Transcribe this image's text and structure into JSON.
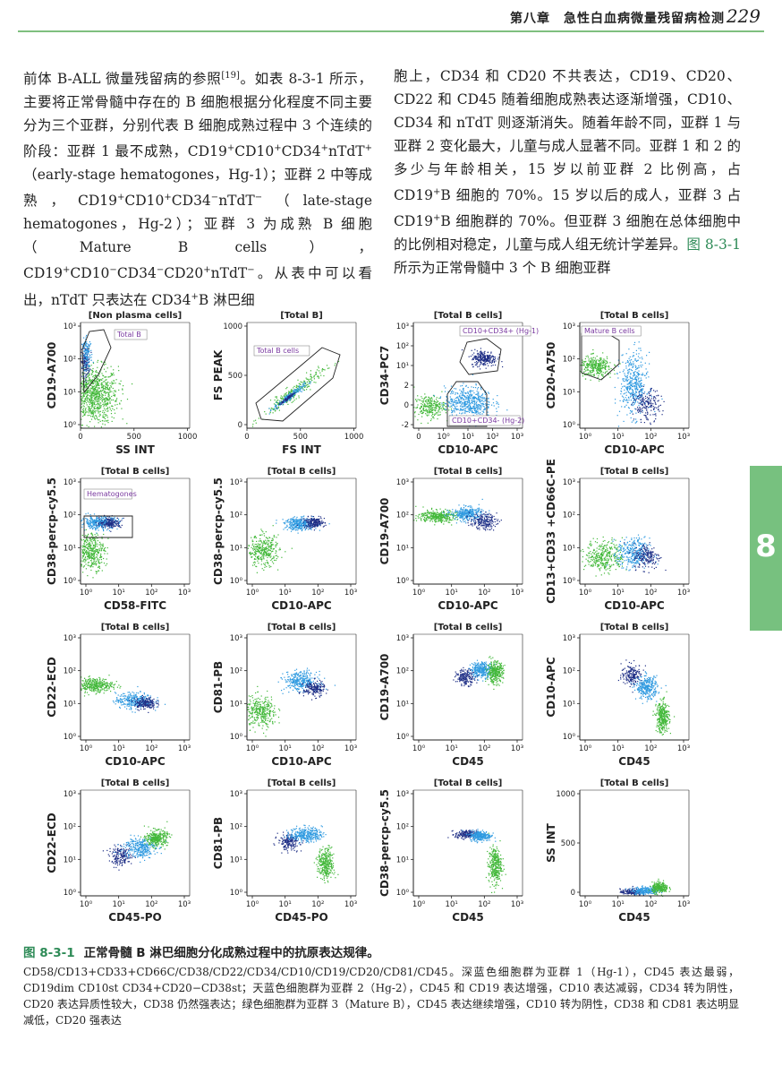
{
  "header": {
    "chapter": "第八章　急性白血病微量残留病检测",
    "page_number": "229"
  },
  "side_tab": "8",
  "text": {
    "left": [
      {
        "t": "前体 B-ALL 微量残留病的参照"
      },
      {
        "t": "[19]",
        "sup": true
      },
      {
        "t": "。如表 8-3-1 所示，主要将正常骨髓中存在的 B 细胞根据分化程度不同主要分为三个亚群，分别代表 B 细胞成熟过程中 3 个连续的阶段：亚群 1 最不成熟，CD19"
      },
      {
        "t": "+",
        "sup": true
      },
      {
        "t": "CD10"
      },
      {
        "t": "+",
        "sup": true
      },
      {
        "t": "CD34"
      },
      {
        "t": "+",
        "sup": true
      },
      {
        "t": "nTdT"
      },
      {
        "t": "+",
        "sup": true
      },
      {
        "t": "（early-stage hematogones，Hg-1）；亚群 2 中等成熟，CD19"
      },
      {
        "t": "+",
        "sup": true
      },
      {
        "t": "CD10"
      },
      {
        "t": "+",
        "sup": true
      },
      {
        "t": "CD34"
      },
      {
        "t": "−",
        "sup": true
      },
      {
        "t": "nTdT"
      },
      {
        "t": "−",
        "sup": true
      },
      {
        "t": "（late-stage hematogones，Hg-2）；亚群 3 为成熟 B 细胞（Mature B cells），CD19"
      },
      {
        "t": "+",
        "sup": true
      },
      {
        "t": "CD10"
      },
      {
        "t": "−",
        "sup": true
      },
      {
        "t": "CD34"
      },
      {
        "t": "−",
        "sup": true
      },
      {
        "t": "CD20"
      },
      {
        "t": "+",
        "sup": true
      },
      {
        "t": "nTdT"
      },
      {
        "t": "−",
        "sup": true
      },
      {
        "t": "。从表中可以看出，nTdT 只表达在 CD34"
      },
      {
        "t": "+",
        "sup": true
      },
      {
        "t": "B 淋巴细"
      }
    ],
    "right": [
      {
        "t": "胞上，CD34 和 CD20 不共表达，CD19、CD20、CD22 和 CD45 随着细胞成熟表达逐渐增强，CD10、CD34 和 nTdT 则逐渐消失。随着年龄不同，亚群 1 与亚群 2 变化最大，儿童与成人显著不同。亚群 1 和 2 的多少与年龄相关，15 岁以前亚群 2 比例高，占 CD19"
      },
      {
        "t": "+",
        "sup": true
      },
      {
        "t": "B 细胞的 70%。15 岁以后的成人，亚群 3 占 CD19"
      },
      {
        "t": "+",
        "sup": true
      },
      {
        "t": "B 细胞群的 70%。但亚群 3 细胞在总体细胞中的比例相对稳定，儿童与成人组无统计学差异。"
      },
      {
        "t": "图 8-3-1",
        "link": true
      },
      {
        "t": " 所示为正常骨髓中 3 个 B 细胞亚群"
      }
    ]
  },
  "figure": {
    "caption_number": "图 8-3-1",
    "caption_title": "正常骨髓 B 淋巴细胞分化成熟过程中的抗原表达规律。",
    "caption_body": "CD58/CD13+CD33+CD66C/CD38/CD22/CD34/CD10/CD19/CD20/CD81/CD45。深蓝色细胞群为亚群 1（Hg-1），CD45 表达最弱，CD19dim CD10st CD34+CD20−CD38st；天蓝色细胞群为亚群 2（Hg-2），CD45 和 CD19 表达增强，CD10 表达减弱，CD34 转为阴性，CD20 表达异质性较大，CD38 仍然强表达；绿色细胞群为亚群 3（Mature B），CD45 表达继续增强，CD10 转为阴性，CD38 和 CD81 表达明显减低，CD20 强表达",
    "colors": {
      "hg1": "#1f2f86",
      "hg2": "#2f9ae0",
      "mature": "#43b83a",
      "gate": "#222222",
      "gate_label": "#7a3aa0"
    },
    "chart_data": [
      {
        "type": "scatter",
        "title": "[Non plasma cells]",
        "xlabel": "SS INT",
        "ylabel": "CD19-A700",
        "x_scale": "linear",
        "y_scale": "log",
        "x_ticks": [
          "0",
          "500",
          "1000"
        ],
        "y_ticks": [
          "10⁰",
          "10¹",
          "10²",
          "10³"
        ],
        "gate": "Total B",
        "populations": [
          {
            "pop": "green",
            "cx": 120,
            "cy": 0.2,
            "sx": 110,
            "sy": 0.55,
            "n": 900
          },
          {
            "pop": "darkblue",
            "cx": 40,
            "cy": 1.5,
            "sx": 20,
            "sy": 0.3,
            "n": 140
          },
          {
            "pop": "skyblue",
            "cx": 55,
            "cy": 1.8,
            "sx": 22,
            "sy": 0.3,
            "n": 120
          }
        ]
      },
      {
        "type": "scatter",
        "title": "[Total B]",
        "xlabel": "FS INT",
        "ylabel": "FS PEAK",
        "x_scale": "linear",
        "y_scale": "linear",
        "x_ticks": [
          "0",
          "500",
          "1000"
        ],
        "y_ticks": [
          "0",
          "500",
          "1000"
        ],
        "gate": "Total B cells",
        "populations": [
          {
            "pop": "green",
            "cx": 420,
            "cy": 340,
            "sx": 140,
            "sy": 110,
            "n": 260,
            "corr": 0.95
          },
          {
            "pop": "skyblue",
            "cx": 380,
            "cy": 300,
            "sx": 70,
            "sy": 55,
            "n": 180,
            "corr": 0.95
          },
          {
            "pop": "darkblue",
            "cx": 370,
            "cy": 290,
            "sx": 30,
            "sy": 25,
            "n": 90,
            "corr": 0.95
          }
        ]
      },
      {
        "type": "scatter",
        "title": "[Total B  cells]",
        "xlabel": "CD10-APC",
        "ylabel": "CD34-PC7",
        "x_scale": "log",
        "y_scale": "log",
        "x_ticks": [
          "0",
          "10⁰",
          "10¹",
          "10²",
          "10³"
        ],
        "y_ticks": [
          "-2",
          "0",
          "2",
          "10¹",
          "10²",
          "10³"
        ],
        "gates": [
          "CD10+CD34+ (Hg-1)",
          "CD10+CD34- (Hg-2)"
        ],
        "populations": [
          {
            "pop": "darkblue",
            "cx": 1.5,
            "cy": 1.4,
            "sx": 0.25,
            "sy": 0.18,
            "n": 240
          },
          {
            "pop": "green",
            "cx": -0.6,
            "cy": -0.8,
            "sx": 0.3,
            "sy": 0.25,
            "n": 260
          },
          {
            "pop": "skyblue",
            "cx": 0.9,
            "cy": -0.6,
            "sx": 0.45,
            "sy": 0.35,
            "n": 520
          }
        ]
      },
      {
        "type": "scatter",
        "title": "[Total B  cells]",
        "xlabel": "CD10-APC",
        "ylabel": "CD20-A750",
        "x_scale": "log",
        "y_scale": "log",
        "x_ticks": [
          "10⁰",
          "10¹",
          "10²",
          "10³"
        ],
        "y_ticks": [
          "10⁰",
          "10¹",
          "10²",
          "10³"
        ],
        "gate": "Mature B cells",
        "populations": [
          {
            "pop": "green",
            "cx": -0.5,
            "cy": 1.3,
            "sx": 0.3,
            "sy": 0.2,
            "n": 320
          },
          {
            "pop": "skyblue",
            "cx": 0.9,
            "cy": 0.6,
            "sx": 0.25,
            "sy": 0.6,
            "n": 420
          },
          {
            "pop": "darkblue",
            "cx": 1.4,
            "cy": -0.2,
            "sx": 0.25,
            "sy": 0.3,
            "n": 180
          }
        ]
      },
      {
        "type": "scatter",
        "title": "[Total B  cells]",
        "xlabel": "CD58-FITC",
        "ylabel": "CD38-percp-cy5.5",
        "x_scale": "log",
        "y_scale": "log",
        "x_ticks": [
          "10⁰",
          "10¹",
          "10²",
          "10³"
        ],
        "y_ticks": [
          "10⁰",
          "10¹",
          "10²",
          "10³"
        ],
        "gate": "Hematogones",
        "populations": [
          {
            "pop": "green",
            "cx": -0.7,
            "cy": 0.2,
            "sx": 0.25,
            "sy": 0.35,
            "n": 380
          },
          {
            "pop": "skyblue",
            "cx": -0.4,
            "cy": 1.3,
            "sx": 0.35,
            "sy": 0.12,
            "n": 360
          },
          {
            "pop": "darkblue",
            "cx": 0.0,
            "cy": 1.3,
            "sx": 0.2,
            "sy": 0.1,
            "n": 160
          }
        ]
      },
      {
        "type": "scatter",
        "title": "[Total B  cells]",
        "xlabel": "CD10-APC",
        "ylabel": "CD38-percp-cy5.5",
        "x_scale": "log",
        "y_scale": "log",
        "x_ticks": [
          "10⁰",
          "10¹",
          "10²",
          "10³"
        ],
        "y_ticks": [
          "10⁰",
          "10¹",
          "10²",
          "10³"
        ],
        "populations": [
          {
            "pop": "green",
            "cx": -0.5,
            "cy": 0.2,
            "sx": 0.3,
            "sy": 0.3,
            "n": 340
          },
          {
            "pop": "skyblue",
            "cx": 0.9,
            "cy": 1.25,
            "sx": 0.3,
            "sy": 0.12,
            "n": 320
          },
          {
            "pop": "darkblue",
            "cx": 1.4,
            "cy": 1.3,
            "sx": 0.2,
            "sy": 0.1,
            "n": 180
          }
        ]
      },
      {
        "type": "scatter",
        "title": "[Total B  cells]",
        "xlabel": "CD10-APC",
        "ylabel": "CD19-A700",
        "x_scale": "log",
        "y_scale": "log",
        "x_ticks": [
          "10⁰",
          "10¹",
          "10²",
          "10³"
        ],
        "y_ticks": [
          "10⁰",
          "10¹",
          "10²",
          "10³"
        ],
        "populations": [
          {
            "pop": "green",
            "cx": -0.2,
            "cy": 1.55,
            "sx": 0.35,
            "sy": 0.12,
            "n": 340
          },
          {
            "pop": "skyblue",
            "cx": 0.9,
            "cy": 1.65,
            "sx": 0.3,
            "sy": 0.13,
            "n": 320
          },
          {
            "pop": "darkblue",
            "cx": 1.5,
            "cy": 1.35,
            "sx": 0.25,
            "sy": 0.15,
            "n": 200
          }
        ]
      },
      {
        "type": "scatter",
        "title": "[Total B  cells]",
        "xlabel": "CD10-APC",
        "ylabel": "CD13+CD33 +CD66C-PE",
        "x_scale": "log",
        "y_scale": "log",
        "x_ticks": [
          "10⁰",
          "10¹",
          "10²",
          "10³"
        ],
        "y_ticks": [
          "10⁰",
          "10¹",
          "10²",
          "10³"
        ],
        "populations": [
          {
            "pop": "green",
            "cx": -0.2,
            "cy": 0.0,
            "sx": 0.35,
            "sy": 0.3,
            "n": 340
          },
          {
            "pop": "skyblue",
            "cx": 0.9,
            "cy": 0.1,
            "sx": 0.3,
            "sy": 0.3,
            "n": 320
          },
          {
            "pop": "darkblue",
            "cx": 1.4,
            "cy": 0.0,
            "sx": 0.25,
            "sy": 0.25,
            "n": 180
          }
        ]
      },
      {
        "type": "scatter",
        "title": "[Total B cells]",
        "xlabel": "CD10-APC",
        "ylabel": "CD22-ECD",
        "x_scale": "log",
        "y_scale": "log",
        "x_ticks": [
          "10⁰",
          "10¹",
          "10²",
          "10³"
        ],
        "y_ticks": [
          "10⁰",
          "10¹",
          "10²",
          "10³"
        ],
        "populations": [
          {
            "pop": "green",
            "cx": -0.6,
            "cy": 1.05,
            "sx": 0.35,
            "sy": 0.14,
            "n": 340
          },
          {
            "pop": "skyblue",
            "cx": 0.9,
            "cy": 0.45,
            "sx": 0.35,
            "sy": 0.15,
            "n": 320
          },
          {
            "pop": "darkblue",
            "cx": 1.3,
            "cy": 0.35,
            "sx": 0.2,
            "sy": 0.12,
            "n": 180
          }
        ]
      },
      {
        "type": "scatter",
        "title": "[Total B cells]",
        "xlabel": "CD10-APC",
        "ylabel": "CD81-PB",
        "x_scale": "log",
        "y_scale": "log",
        "x_ticks": [
          "10⁰",
          "10¹",
          "10²",
          "10³"
        ],
        "y_ticks": [
          "10⁰",
          "10¹",
          "10²",
          "10³"
        ],
        "populations": [
          {
            "pop": "green",
            "cx": -0.6,
            "cy": 0.0,
            "sx": 0.3,
            "sy": 0.3,
            "n": 340
          },
          {
            "pop": "skyblue",
            "cx": 0.9,
            "cy": 1.2,
            "sx": 0.3,
            "sy": 0.18,
            "n": 320
          },
          {
            "pop": "darkblue",
            "cx": 1.4,
            "cy": 0.9,
            "sx": 0.2,
            "sy": 0.15,
            "n": 180
          }
        ]
      },
      {
        "type": "scatter",
        "title": "[Total B cells]",
        "xlabel": "CD45",
        "ylabel": "CD19-A700",
        "x_scale": "log",
        "y_scale": "log",
        "x_ticks": [
          "10⁰",
          "10¹",
          "10²",
          "10³"
        ],
        "y_ticks": [
          "10⁰",
          "10¹",
          "10²",
          "10³"
        ],
        "populations": [
          {
            "pop": "darkblue",
            "cx": 0.85,
            "cy": 1.35,
            "sx": 0.18,
            "sy": 0.15,
            "n": 180
          },
          {
            "pop": "skyblue",
            "cx": 1.45,
            "cy": 1.65,
            "sx": 0.2,
            "sy": 0.15,
            "n": 300
          },
          {
            "pop": "green",
            "cx": 1.95,
            "cy": 1.55,
            "sx": 0.15,
            "sy": 0.2,
            "n": 320
          }
        ]
      },
      {
        "type": "scatter",
        "title": "[Total B cells]",
        "xlabel": "CD45",
        "ylabel": "CD10-APC",
        "x_scale": "log",
        "y_scale": "log",
        "x_ticks": [
          "10⁰",
          "10¹",
          "10²",
          "10³"
        ],
        "y_ticks": [
          "10⁰",
          "10¹",
          "10²",
          "10³"
        ],
        "populations": [
          {
            "pop": "darkblue",
            "cx": 0.85,
            "cy": 1.45,
            "sx": 0.2,
            "sy": 0.2,
            "n": 180
          },
          {
            "pop": "skyblue",
            "cx": 1.4,
            "cy": 0.95,
            "sx": 0.2,
            "sy": 0.22,
            "n": 300
          },
          {
            "pop": "green",
            "cx": 2.0,
            "cy": -0.2,
            "sx": 0.12,
            "sy": 0.3,
            "n": 320
          }
        ]
      },
      {
        "type": "scatter",
        "title": "[Total B cells]",
        "xlabel": "CD45-PO",
        "ylabel": "CD22-ECD",
        "x_scale": "log",
        "y_scale": "log",
        "x_ticks": [
          "10⁰",
          "10¹",
          "10²",
          "10³"
        ],
        "y_ticks": [
          "10⁰",
          "10¹",
          "10²",
          "10³"
        ],
        "populations": [
          {
            "pop": "darkblue",
            "cx": 0.4,
            "cy": 0.45,
            "sx": 0.22,
            "sy": 0.18,
            "n": 180
          },
          {
            "pop": "skyblue",
            "cx": 1.1,
            "cy": 0.8,
            "sx": 0.3,
            "sy": 0.2,
            "n": 300
          },
          {
            "pop": "green",
            "cx": 1.75,
            "cy": 1.15,
            "sx": 0.2,
            "sy": 0.15,
            "n": 320
          }
        ]
      },
      {
        "type": "scatter",
        "title": "[Total B cells]",
        "xlabel": "CD45-PO",
        "ylabel": "CD81-PB",
        "x_scale": "log",
        "y_scale": "log",
        "x_ticks": [
          "10⁰",
          "10¹",
          "10²",
          "10³"
        ],
        "y_ticks": [
          "10⁰",
          "10¹",
          "10²",
          "10³"
        ],
        "populations": [
          {
            "pop": "darkblue",
            "cx": 0.45,
            "cy": 1.0,
            "sx": 0.2,
            "sy": 0.15,
            "n": 180
          },
          {
            "pop": "skyblue",
            "cx": 1.1,
            "cy": 1.3,
            "sx": 0.3,
            "sy": 0.14,
            "n": 300
          },
          {
            "pop": "green",
            "cx": 1.85,
            "cy": 0.15,
            "sx": 0.15,
            "sy": 0.3,
            "n": 320
          }
        ]
      },
      {
        "type": "scatter",
        "title": "[Total B  cells]",
        "xlabel": "CD45",
        "ylabel": "CD38-percp-cy5.5",
        "x_scale": "log",
        "y_scale": "log",
        "x_ticks": [
          "10⁰",
          "10¹",
          "10²",
          "10³"
        ],
        "y_ticks": [
          "10⁰",
          "10¹",
          "10²",
          "10³"
        ],
        "populations": [
          {
            "pop": "darkblue",
            "cx": 0.85,
            "cy": 1.3,
            "sx": 0.2,
            "sy": 0.08,
            "n": 180
          },
          {
            "pop": "skyblue",
            "cx": 1.4,
            "cy": 1.25,
            "sx": 0.2,
            "sy": 0.1,
            "n": 280
          },
          {
            "pop": "green",
            "cx": 1.95,
            "cy": 0.1,
            "sx": 0.12,
            "sy": 0.35,
            "n": 320
          }
        ]
      },
      {
        "type": "scatter",
        "title": "[Total B  cells]",
        "xlabel": "CD45",
        "ylabel": "SS INT",
        "x_scale": "log",
        "y_scale": "linear",
        "x_ticks": [
          "10⁰",
          "10¹",
          "10²",
          "10³"
        ],
        "y_ticks": [
          "0",
          "500",
          "1000"
        ],
        "populations": [
          {
            "pop": "darkblue",
            "cx": 0.8,
            "cy": 40,
            "sx": 0.2,
            "sy": 15,
            "n": 140
          },
          {
            "pop": "skyblue",
            "cx": 1.35,
            "cy": 55,
            "sx": 0.25,
            "sy": 18,
            "n": 220
          },
          {
            "pop": "green",
            "cx": 1.9,
            "cy": 80,
            "sx": 0.15,
            "sy": 25,
            "n": 260
          }
        ]
      }
    ]
  }
}
